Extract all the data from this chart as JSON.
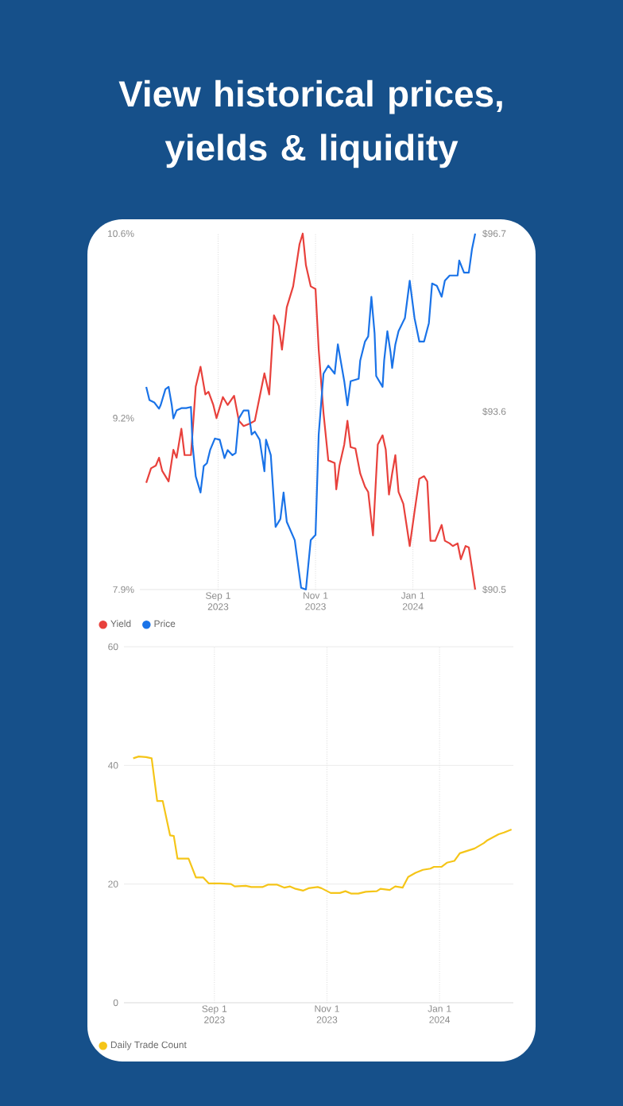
{
  "chart_data": [
    {
      "type": "line",
      "title": "View historical prices, yields & liquidity",
      "xlim": [
        "2023-07-14",
        "2024-02-10"
      ],
      "xticks": [
        {
          "value": "2023-09-01",
          "label": "Sep 1 2023"
        },
        {
          "value": "2023-11-01",
          "label": "Nov 1 2023"
        },
        {
          "value": "2024-01-01",
          "label": "Jan 1 2024"
        }
      ],
      "ylim": [
        7.9,
        10.6
      ],
      "yticks": [
        {
          "value": 7.9,
          "label": "7.9%"
        },
        {
          "value": 9.2,
          "label": "9.2%"
        },
        {
          "value": 10.6,
          "label": "10.6%"
        }
      ],
      "y2lim": [
        90.5,
        96.7
      ],
      "y2ticks": [
        {
          "value": 90.5,
          "label": "$90.5"
        },
        {
          "value": 93.6,
          "label": "$93.6"
        },
        {
          "value": 96.7,
          "label": "$96.7"
        }
      ],
      "grid": "x",
      "legend": "bottom",
      "series": [
        {
          "name": "Yield",
          "color": "#e8413c",
          "x": [
            "2023-07-18",
            "2023-07-21",
            "2023-07-24",
            "2023-07-26",
            "2023-07-28",
            "2023-08-01",
            "2023-08-04",
            "2023-08-06",
            "2023-08-09",
            "2023-08-11",
            "2023-08-15",
            "2023-08-18",
            "2023-08-21",
            "2023-08-24",
            "2023-08-26",
            "2023-08-29",
            "2023-08-31",
            "2023-09-04",
            "2023-09-07",
            "2023-09-11",
            "2023-09-14",
            "2023-09-17",
            "2023-09-21",
            "2023-09-24",
            "2023-09-27",
            "2023-09-30",
            "2023-10-03",
            "2023-10-06",
            "2023-10-09",
            "2023-10-11",
            "2023-10-14",
            "2023-10-18",
            "2023-10-20",
            "2023-10-22",
            "2023-10-24",
            "2023-10-26",
            "2023-10-29",
            "2023-11-01",
            "2023-11-03",
            "2023-11-06",
            "2023-11-09",
            "2023-11-13",
            "2023-11-14",
            "2023-11-16",
            "2023-11-19",
            "2023-11-21",
            "2023-11-23",
            "2023-11-26",
            "2023-11-29",
            "2023-12-02",
            "2023-12-04",
            "2023-12-07",
            "2023-12-10",
            "2023-12-13",
            "2023-12-15",
            "2023-12-17",
            "2023-12-19",
            "2023-12-21",
            "2023-12-23",
            "2023-12-26",
            "2023-12-30",
            "2024-01-02",
            "2024-01-05",
            "2024-01-08",
            "2024-01-10",
            "2024-01-12",
            "2024-01-15",
            "2024-01-19",
            "2024-01-21",
            "2024-01-24",
            "2024-01-26",
            "2024-01-29",
            "2024-01-31",
            "2024-02-03",
            "2024-02-05",
            "2024-02-09"
          ],
          "values": [
            8.71,
            8.82,
            8.84,
            8.9,
            8.8,
            8.72,
            8.96,
            8.9,
            9.12,
            8.92,
            8.92,
            9.44,
            9.59,
            9.38,
            9.4,
            9.3,
            9.2,
            9.36,
            9.3,
            9.37,
            9.18,
            9.14,
            9.16,
            9.18,
            9.36,
            9.54,
            9.38,
            9.98,
            9.9,
            9.72,
            10.04,
            10.2,
            10.36,
            10.52,
            10.6,
            10.36,
            10.2,
            10.18,
            9.72,
            9.24,
            8.88,
            8.86,
            8.66,
            8.84,
            9.0,
            9.18,
            8.98,
            8.97,
            8.78,
            8.68,
            8.64,
            8.31,
            9.0,
            9.07,
            8.96,
            8.62,
            8.78,
            8.92,
            8.64,
            8.55,
            8.23,
            8.49,
            8.74,
            8.76,
            8.72,
            8.27,
            8.27,
            8.39,
            8.27,
            8.25,
            8.23,
            8.25,
            8.13,
            8.23,
            8.22,
            7.9
          ]
        },
        {
          "name": "Price",
          "color": "#1a73e8",
          "axis": "y2",
          "x": [
            "2023-07-18",
            "2023-07-20",
            "2023-07-23",
            "2023-07-26",
            "2023-07-27",
            "2023-07-30",
            "2023-08-01",
            "2023-08-03",
            "2023-08-04",
            "2023-08-06",
            "2023-08-09",
            "2023-08-12",
            "2023-08-15",
            "2023-08-16",
            "2023-08-18",
            "2023-08-21",
            "2023-08-23",
            "2023-08-25",
            "2023-08-27",
            "2023-08-30",
            "2023-09-02",
            "2023-09-05",
            "2023-09-07",
            "2023-09-10",
            "2023-09-12",
            "2023-09-14",
            "2023-09-17",
            "2023-09-20",
            "2023-09-22",
            "2023-09-24",
            "2023-09-27",
            "2023-09-30",
            "2023-10-01",
            "2023-10-04",
            "2023-10-07",
            "2023-10-10",
            "2023-10-12",
            "2023-10-14",
            "2023-10-19",
            "2023-10-23",
            "2023-10-26",
            "2023-10-29",
            "2023-11-01",
            "2023-11-03",
            "2023-11-06",
            "2023-11-09",
            "2023-11-13",
            "2023-11-15",
            "2023-11-17",
            "2023-11-19",
            "2023-11-21",
            "2023-11-23",
            "2023-11-28",
            "2023-11-29",
            "2023-12-02",
            "2023-12-04",
            "2023-12-06",
            "2023-12-08",
            "2023-12-09",
            "2023-12-13",
            "2023-12-14",
            "2023-12-16",
            "2023-12-18",
            "2023-12-19",
            "2023-12-21",
            "2023-12-23",
            "2023-12-27",
            "2023-12-30",
            "2024-01-02",
            "2024-01-05",
            "2024-01-08",
            "2024-01-11",
            "2024-01-13",
            "2024-01-16",
            "2024-01-19",
            "2024-01-21",
            "2024-01-24",
            "2024-01-29",
            "2024-01-30",
            "2024-02-02",
            "2024-02-05",
            "2024-02-07",
            "2024-02-09"
          ],
          "values": [
            94.03,
            93.8,
            93.76,
            93.65,
            93.71,
            93.99,
            94.03,
            93.71,
            93.48,
            93.62,
            93.66,
            93.66,
            93.68,
            93.02,
            92.47,
            92.19,
            92.65,
            92.7,
            92.93,
            93.13,
            93.11,
            92.79,
            92.93,
            92.84,
            92.88,
            93.48,
            93.62,
            93.62,
            93.2,
            93.25,
            93.11,
            92.56,
            93.11,
            92.84,
            91.59,
            91.73,
            92.19,
            91.68,
            91.36,
            90.53,
            90.5,
            91.36,
            91.45,
            93.2,
            94.26,
            94.4,
            94.26,
            94.77,
            94.45,
            94.13,
            93.71,
            94.13,
            94.17,
            94.49,
            94.82,
            94.91,
            95.6,
            94.96,
            94.22,
            94.03,
            94.49,
            95.0,
            94.63,
            94.36,
            94.77,
            95.0,
            95.23,
            95.88,
            95.23,
            94.82,
            94.82,
            95.14,
            95.83,
            95.79,
            95.6,
            95.88,
            95.97,
            95.97,
            96.23,
            96.02,
            96.02,
            96.43,
            96.7
          ]
        }
      ]
    },
    {
      "type": "line",
      "xlim": [
        "2023-07-14",
        "2024-02-10"
      ],
      "xticks": [
        {
          "value": "2023-09-01",
          "label": "Sep 1 2023"
        },
        {
          "value": "2023-11-01",
          "label": "Nov 1 2023"
        },
        {
          "value": "2024-01-01",
          "label": "Jan 1 2024"
        }
      ],
      "ylim": [
        0,
        60
      ],
      "yticks": [
        0,
        20,
        40,
        60
      ],
      "grid": true,
      "legend": "bottom",
      "series": [
        {
          "name": "Daily Trade Count",
          "color": "#f5c518",
          "x": [
            "2023-07-19",
            "2023-07-22",
            "2023-07-26",
            "2023-07-29",
            "2023-08-01",
            "2023-08-04",
            "2023-08-08",
            "2023-08-10",
            "2023-08-12",
            "2023-08-18",
            "2023-08-22",
            "2023-08-26",
            "2023-08-29",
            "2023-09-04",
            "2023-09-10",
            "2023-09-12",
            "2023-09-18",
            "2023-09-21",
            "2023-09-27",
            "2023-09-30",
            "2023-10-05",
            "2023-10-09",
            "2023-10-12",
            "2023-10-15",
            "2023-10-19",
            "2023-10-22",
            "2023-10-27",
            "2023-10-29",
            "2023-11-03",
            "2023-11-08",
            "2023-11-11",
            "2023-11-14",
            "2023-11-18",
            "2023-11-22",
            "2023-11-28",
            "2023-11-30",
            "2023-12-05",
            "2023-12-08",
            "2023-12-12",
            "2023-12-15",
            "2023-12-19",
            "2023-12-23",
            "2023-12-27",
            "2023-12-29",
            "2024-01-02",
            "2024-01-05",
            "2024-01-09",
            "2024-01-12",
            "2024-01-16",
            "2024-01-20",
            "2024-01-25",
            "2024-01-27",
            "2024-01-30",
            "2024-02-02",
            "2024-02-05",
            "2024-02-09"
          ],
          "values": [
            41.2,
            41.5,
            41.4,
            41.2,
            34.0,
            34.0,
            28.2,
            28.1,
            24.3,
            24.3,
            21.1,
            21.1,
            20.1,
            20.1,
            20.0,
            19.6,
            19.7,
            19.5,
            19.5,
            19.9,
            19.9,
            19.4,
            19.6,
            19.2,
            18.9,
            19.3,
            19.5,
            19.3,
            18.5,
            18.5,
            18.8,
            18.4,
            18.4,
            18.7,
            18.8,
            19.2,
            19.0,
            19.6,
            19.4,
            21.2,
            21.9,
            22.4,
            22.6,
            22.9,
            22.9,
            23.6,
            23.9,
            25.2,
            25.6,
            26.0,
            26.9,
            27.4,
            27.9,
            28.4,
            28.7,
            29.2
          ]
        }
      ]
    }
  ]
}
